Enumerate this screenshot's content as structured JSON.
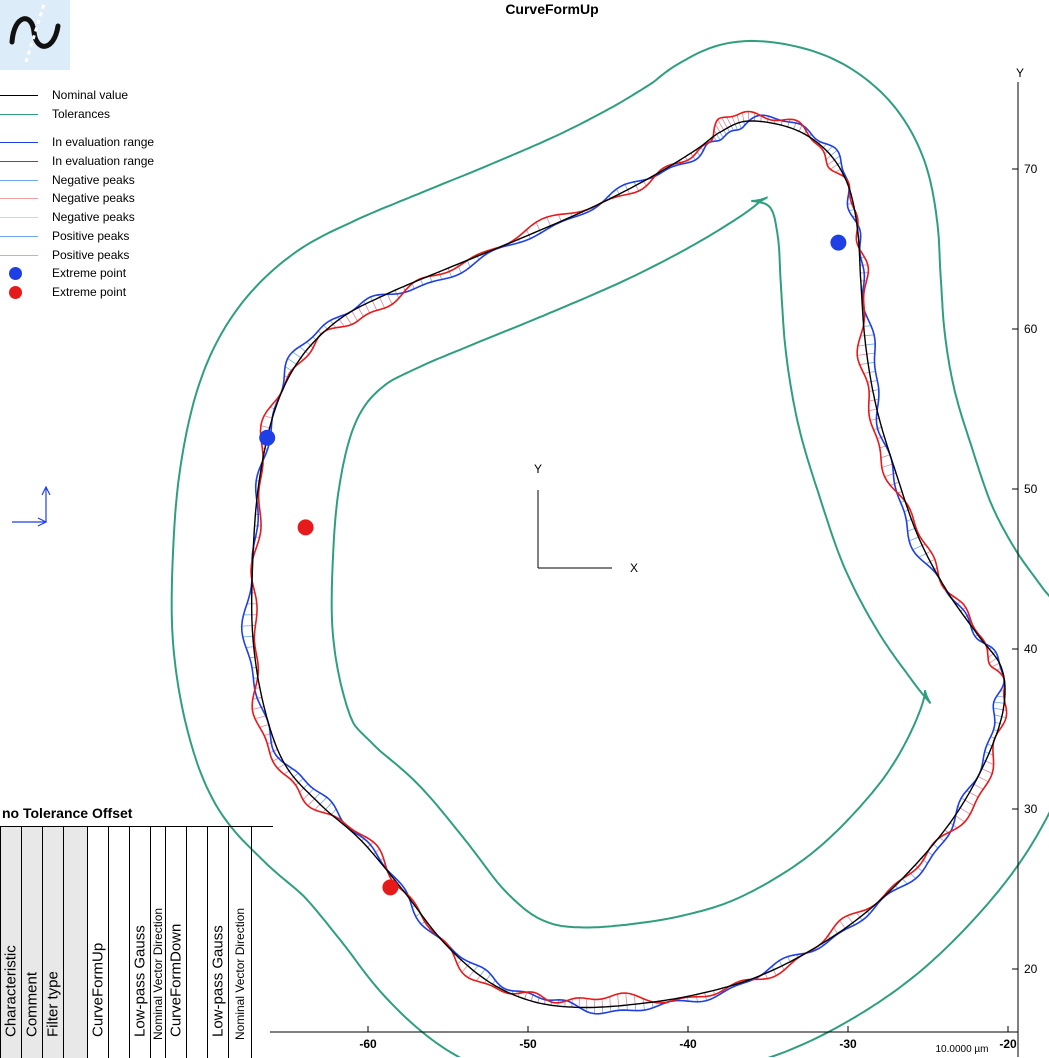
{
  "title": "CurveFormUp",
  "axis_y_label": "Y",
  "scale_label": "10.0000 µm",
  "center_axes": {
    "x_label": "X",
    "y_label": "Y"
  },
  "legend": [
    {
      "label": "Nominal value",
      "kind": "line",
      "color": "#000000"
    },
    {
      "label": "Tolerances",
      "kind": "line",
      "color": "#2f9e7f"
    },
    {
      "kind": "gap"
    },
    {
      "label": "In evaluation range",
      "kind": "line",
      "color": "#1f3fe6"
    },
    {
      "label": "In evaluation range",
      "kind": "line",
      "color": "#e61a1a"
    },
    {
      "label": "Negative peaks",
      "kind": "line",
      "color": "#6fa8f0"
    },
    {
      "label": "Negative peaks",
      "kind": "line",
      "color": "#f0a0a0"
    },
    {
      "label": "Negative peaks",
      "kind": "line",
      "color": "#f2c6d2"
    },
    {
      "label": "Positive peaks",
      "kind": "line",
      "color": "#6fa8f0"
    },
    {
      "label": "Positive peaks",
      "kind": "line",
      "color": "#f0a0a0"
    },
    {
      "label": "Extreme point",
      "kind": "dot",
      "color": "#1f3fe6"
    },
    {
      "label": "Extreme point",
      "kind": "dot",
      "color": "#e61a1a"
    }
  ],
  "tolerance_table": {
    "title": "no Tolerance Offset",
    "columns": [
      {
        "text": "Characteristic",
        "size": "large",
        "shaded": true
      },
      {
        "text": "Comment",
        "size": "large",
        "shaded": true
      },
      {
        "text": "Filter type",
        "size": "large",
        "shaded": true
      },
      {
        "text": "",
        "size": "large",
        "shaded": true
      },
      {
        "text": "CurveFormUp",
        "size": "large",
        "shaded": false
      },
      {
        "text": "",
        "size": "large",
        "shaded": false
      },
      {
        "text": "Low-pass Gauss",
        "size": "large",
        "shaded": false
      },
      {
        "text": "Nominal Vector Direction",
        "size": "small",
        "shaded": false
      },
      {
        "text": "CurveFormDown",
        "size": "large",
        "shaded": false
      },
      {
        "text": "",
        "size": "large",
        "shaded": false
      },
      {
        "text": "Low-pass Gauss",
        "size": "large",
        "shaded": false
      },
      {
        "text": "Nominal Vector Direction",
        "size": "small",
        "shaded": false
      }
    ]
  },
  "chart_data": {
    "type": "line",
    "title": "CurveFormUp",
    "xlabel": "",
    "ylabel": "Y",
    "x_ticks": [
      -60,
      -50,
      -40,
      -30,
      -20
    ],
    "y_ticks": [
      20,
      30,
      40,
      50,
      60,
      70
    ],
    "y_ticks_labels": [
      "20",
      "30",
      "40",
      "50",
      "60",
      "70"
    ],
    "xlim": [
      -66.5,
      -19.8
    ],
    "ylim": [
      16.7,
      72.9
    ],
    "colors": {
      "nominal": "#000000",
      "tolerance": "#2f9e7f",
      "up": "#1f3fe6",
      "down": "#e61a1a",
      "hatch_up": "#6fa8f0",
      "hatch_down": "#d98aa0"
    },
    "tolerance_offset": 5.0,
    "nominal_contour": [
      [
        -36.2,
        73.0
      ],
      [
        -33.4,
        72.5
      ],
      [
        -31.3,
        71.1
      ],
      [
        -30.0,
        69.0
      ],
      [
        -29.4,
        66.2
      ],
      [
        -29.2,
        63.0
      ],
      [
        -28.9,
        59.0
      ],
      [
        -28.2,
        55.0
      ],
      [
        -27.0,
        51.0
      ],
      [
        -25.6,
        47.0
      ],
      [
        -23.8,
        43.6
      ],
      [
        -21.9,
        40.9
      ],
      [
        -20.4,
        38.8
      ],
      [
        -20.3,
        36.2
      ],
      [
        -21.4,
        33.0
      ],
      [
        -23.3,
        29.6
      ],
      [
        -25.8,
        26.5
      ],
      [
        -28.8,
        23.6
      ],
      [
        -32.1,
        21.3
      ],
      [
        -35.7,
        19.5
      ],
      [
        -39.5,
        18.4
      ],
      [
        -43.3,
        17.8
      ],
      [
        -46.8,
        17.6
      ],
      [
        -49.8,
        18.0
      ],
      [
        -52.6,
        19.3
      ],
      [
        -55.3,
        21.7
      ],
      [
        -57.8,
        24.9
      ],
      [
        -60.4,
        28.0
      ],
      [
        -63.0,
        30.3
      ],
      [
        -65.2,
        32.8
      ],
      [
        -66.5,
        36.4
      ],
      [
        -67.2,
        40.8
      ],
      [
        -67.2,
        45.6
      ],
      [
        -66.8,
        50.5
      ],
      [
        -65.8,
        55.0
      ],
      [
        -64.2,
        58.2
      ],
      [
        -61.8,
        60.6
      ],
      [
        -58.8,
        62.2
      ],
      [
        -55.0,
        63.8
      ],
      [
        -50.6,
        65.6
      ],
      [
        -46.0,
        67.6
      ],
      [
        -42.3,
        69.5
      ],
      [
        -39.5,
        71.2
      ],
      [
        -38.0,
        72.3
      ]
    ],
    "series": [
      {
        "name": "In evaluation range",
        "color": "#1f3fe6",
        "deviation_amp": 0.55,
        "deviation_phase": 0.0
      },
      {
        "name": "In evaluation range",
        "color": "#e61a1a",
        "deviation_amp": 0.65,
        "deviation_phase": 1.7
      }
    ],
    "extreme_points": [
      {
        "series": "up",
        "x": -30.6,
        "y": 65.4
      },
      {
        "series": "up",
        "x": -66.3,
        "y": 53.2
      },
      {
        "series": "down",
        "x": -63.9,
        "y": 47.6
      },
      {
        "series": "down",
        "x": -58.6,
        "y": 25.1
      }
    ],
    "grid": false,
    "legend_position": "top-left"
  }
}
